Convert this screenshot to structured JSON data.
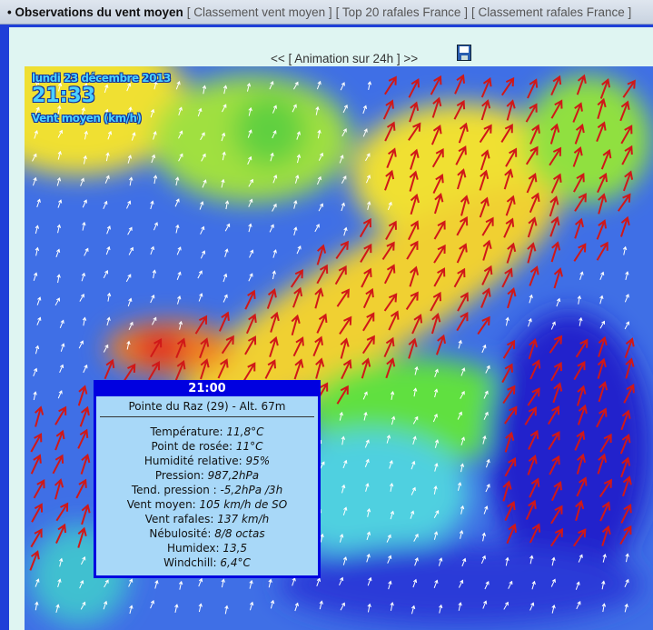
{
  "topbar": {
    "current": "• Observations du vent moyen",
    "links": [
      "[ Classement vent moyen ]",
      "[ Top 20 rafales France ]",
      "[ Classement rafales France ]"
    ]
  },
  "animation": {
    "label": "<< [ Animation sur 24h ] >>",
    "save_icon": "floppy-disk-icon"
  },
  "map": {
    "date": "lundi 23 décembre 2013",
    "time": "21:33",
    "variable": "Vent moyen (km/h)",
    "colors": {
      "ocean": "#3f6fe6",
      "low": "#60e040",
      "mid": "#f0e030",
      "high": "#f08020",
      "max": "#e02020",
      "calm": "#2222cc"
    }
  },
  "popup": {
    "time": "21:00",
    "station": "Pointe du Raz (29) - Alt. 67m",
    "rows": [
      {
        "label": "Température: ",
        "value": "11,8°C"
      },
      {
        "label": "Point de rosée: ",
        "value": "11°C"
      },
      {
        "label": "Humidité relative: ",
        "value": "95%"
      },
      {
        "label": "Pression: ",
        "value": "987,2hPa"
      },
      {
        "label": "Tend. pression : ",
        "value": "-5,2hPa /3h"
      },
      {
        "label": "Vent moyen: ",
        "value": "105 km/h de SO"
      },
      {
        "label": "Vent rafales: ",
        "value": "137 km/h"
      },
      {
        "label": "Nébulosité: ",
        "value": "8/8 octas"
      },
      {
        "label": "Humidex: ",
        "value": "13,5"
      },
      {
        "label": "Windchill: ",
        "value": "6,4°C"
      }
    ]
  }
}
